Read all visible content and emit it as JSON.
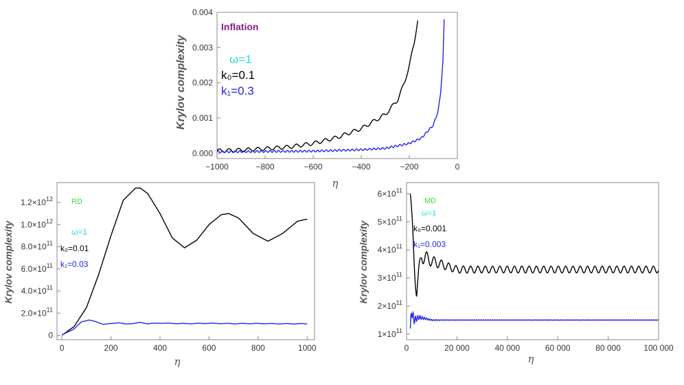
{
  "figure": {
    "panels": [
      {
        "id": "inflation",
        "chart_data": {
          "type": "line",
          "xlabel": "η",
          "ylabel": "Krylov complexity",
          "xlim": [
            -1000,
            0
          ],
          "ylim": [
            -0.00015,
            0.004
          ],
          "xticks": [
            {
              "v": -1000,
              "label": "−1000"
            },
            {
              "v": -800,
              "label": "−800"
            },
            {
              "v": -600,
              "label": "−600"
            },
            {
              "v": -400,
              "label": "−400"
            },
            {
              "v": -200,
              "label": "−200"
            },
            {
              "v": 0,
              "label": "0"
            }
          ],
          "yticks": [
            {
              "v": 0,
              "label": "0.000"
            },
            {
              "v": 0.001,
              "label": "0.001"
            },
            {
              "v": 0.002,
              "label": "0.002"
            },
            {
              "v": 0.003,
              "label": "0.003"
            },
            {
              "v": 0.004,
              "label": "0.004"
            }
          ],
          "annotations": [
            {
              "text": "Inflation",
              "color": "#8b1a8b"
            },
            {
              "text": "ω=1",
              "color": "#22dddd"
            },
            {
              "text": "k₀=0.1",
              "color": "#000000"
            },
            {
              "text": "k₁=0.3",
              "color": "#2222ee"
            }
          ],
          "series": [
            {
              "color": "#000000",
              "x": [
                -1000,
                -900,
                -800,
                -700,
                -600,
                -500,
                -400,
                -300,
                -250,
                -220,
                -200,
                -180,
                -165
              ],
              "y": [
                7e-05,
                9e-05,
                0.00013,
                0.00018,
                0.00028,
                0.00045,
                0.0007,
                0.0011,
                0.0015,
                0.002,
                0.0025,
                0.0031,
                0.0038
              ]
            },
            {
              "color": "#2222ee",
              "x": [
                -1000,
                -800,
                -600,
                -400,
                -300,
                -200,
                -150,
                -100,
                -80,
                -70,
                -60,
                -55
              ],
              "y": [
                4e-05,
                5e-05,
                6e-05,
                0.0001,
                0.00014,
                0.00028,
                0.00043,
                0.0008,
                0.0012,
                0.0017,
                0.0026,
                0.0038
              ]
            }
          ]
        }
      },
      {
        "id": "rd",
        "chart_data": {
          "type": "line",
          "xlabel": "η",
          "ylabel": "Krylov complexity",
          "xlim": [
            -20,
            1030
          ],
          "ylim": [
            -40000000000.0,
            1380000000000.0
          ],
          "xticks": [
            {
              "v": 0,
              "label": "0"
            },
            {
              "v": 200,
              "label": "200"
            },
            {
              "v": 400,
              "label": "400"
            },
            {
              "v": 600,
              "label": "600"
            },
            {
              "v": 800,
              "label": "800"
            },
            {
              "v": 1000,
              "label": "1000"
            }
          ],
          "yticks": [
            {
              "v": 0,
              "m": "0",
              "e": ""
            },
            {
              "v": 200000000000.0,
              "m": "2.0×10",
              "e": "11"
            },
            {
              "v": 400000000000.0,
              "m": "4.0×10",
              "e": "11"
            },
            {
              "v": 600000000000.0,
              "m": "6.0×10",
              "e": "11"
            },
            {
              "v": 800000000000.0,
              "m": "8.0×10",
              "e": "11"
            },
            {
              "v": 1000000000000.0,
              "m": "1.0×10",
              "e": "12"
            },
            {
              "v": 1200000000000.0,
              "m": "1.2×10",
              "e": "12"
            }
          ],
          "annotations": [
            {
              "text": "RD",
              "color": "#33dd33"
            },
            {
              "text": "ω=1",
              "color": "#22dddd"
            },
            {
              "text": "k₀=0.01",
              "color": "#000000"
            },
            {
              "text": "k₁=0.03",
              "color": "#2222ee"
            }
          ],
          "series": [
            {
              "color": "#000000",
              "x": [
                0,
                50,
                100,
                150,
                200,
                250,
                300,
                320,
                350,
                400,
                450,
                500,
                550,
                600,
                650,
                680,
                720,
                780,
                840,
                900,
                960,
                1000
              ],
              "y": [
                0,
                80000000000.0,
                250000000000.0,
                550000000000.0,
                900000000000.0,
                1220000000000.0,
                1330000000000.0,
                1330000000000.0,
                1280000000000.0,
                1100000000000.0,
                880000000000.0,
                790000000000.0,
                860000000000.0,
                1000000000000.0,
                1090000000000.0,
                1100000000000.0,
                1060000000000.0,
                920000000000.0,
                850000000000.0,
                920000000000.0,
                1030000000000.0,
                1050000000000.0
              ]
            },
            {
              "color": "#2222ee",
              "x": [
                0,
                50,
                80,
                110,
                140,
                170,
                200,
                230,
                260,
                290,
                320,
                350,
                400,
                500,
                600,
                700,
                800,
                900,
                1000
              ],
              "y": [
                0,
                60000000000.0,
                120000000000.0,
                140000000000.0,
                120000000000.0,
                100000000000.0,
                105000000000.0,
                115000000000.0,
                100000000000.0,
                108000000000.0,
                115000000000.0,
                105000000000.0,
                110000000000.0,
                105000000000.0,
                108000000000.0,
                105000000000.0,
                106000000000.0,
                104000000000.0,
                104000000000.0
              ]
            }
          ]
        }
      },
      {
        "id": "md",
        "chart_data": {
          "type": "line",
          "xlabel": "η",
          "ylabel": "Krylov complexity",
          "xlim": [
            0,
            100000
          ],
          "ylim": [
            80000000000.0,
            640000000000.0
          ],
          "xticks": [
            {
              "v": 0,
              "label": "0"
            },
            {
              "v": 20000,
              "label": "20 000"
            },
            {
              "v": 40000,
              "label": "40 000"
            },
            {
              "v": 60000,
              "label": "60 000"
            },
            {
              "v": 80000,
              "label": "80 000"
            },
            {
              "v": 100000,
              "label": "100 000"
            }
          ],
          "yticks": [
            {
              "v": 100000000000.0,
              "m": "1×10",
              "e": "11"
            },
            {
              "v": 200000000000.0,
              "m": "2×10",
              "e": "11"
            },
            {
              "v": 300000000000.0,
              "m": "3×10",
              "e": "11"
            },
            {
              "v": 400000000000.0,
              "m": "4×10",
              "e": "11"
            },
            {
              "v": 500000000000.0,
              "m": "5×10",
              "e": "11"
            },
            {
              "v": 600000000000.0,
              "m": "6×10",
              "e": "11"
            }
          ],
          "annotations": [
            {
              "text": "MD",
              "color": "#33dd33"
            },
            {
              "text": "ω=1",
              "color": "#22dddd"
            },
            {
              "text": "k₀=0.001",
              "color": "#000000"
            },
            {
              "text": "k₁=0.003",
              "color": "#2222ee"
            }
          ],
          "series": [
            {
              "color": "#000000",
              "x": [
                1500,
                2000,
                3000,
                4000,
                6000,
                10000,
                20000,
                40000,
                60000,
                80000,
                100000
              ],
              "y": [
                600000000000.0,
                500000000000.0,
                360000000000.0,
                260000000000.0,
                380000000000.0,
                360000000000.0,
                330000000000.0,
                330000000000.0,
                330000000000.0,
                330000000000.0,
                330000000000.0
              ]
            },
            {
              "color": "#2222ee",
              "x": [
                1500,
                2000,
                3000,
                5000,
                10000,
                20000,
                40000,
                60000,
                80000,
                100000
              ],
              "y": [
                120000000000.0,
                180000000000.0,
                150000000000.0,
                160000000000.0,
                150000000000.0,
                150000000000.0,
                150000000000.0,
                150000000000.0,
                150000000000.0,
                150000000000.0
              ]
            }
          ]
        }
      }
    ]
  }
}
